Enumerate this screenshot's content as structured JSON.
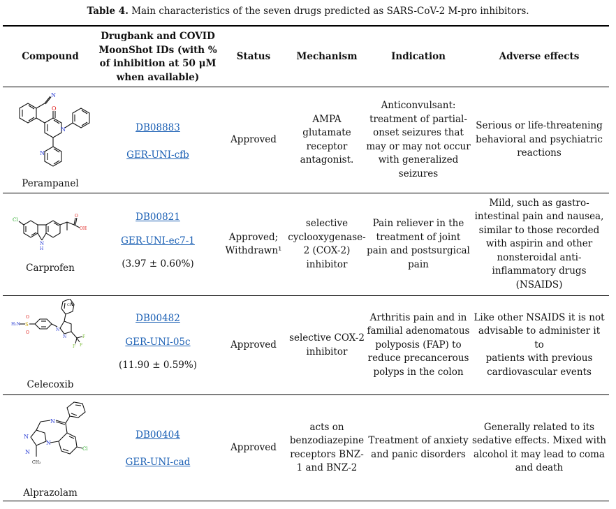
{
  "caption": {
    "label": "Table 4.",
    "text": "Main characteristics of the seven drugs predicted as SARS-CoV-2 M-pro inhibitors."
  },
  "headers": {
    "compound": "Compound",
    "ids": [
      "Drugbank and COVID",
      "MoonShot IDs (with %",
      "of inhibition at 50 μM",
      "when available)"
    ],
    "status": "Status",
    "mechanism": "Mechanism",
    "indication": "Indication",
    "adverse": "Adverse effects"
  },
  "rows": [
    {
      "compound": "Perampanel",
      "drugbank": "DB08883",
      "moonshot": "GER-UNI-cfb",
      "inhibition": "",
      "status": [
        "Approved"
      ],
      "mechanism": [
        "AMPA",
        "glutamate",
        "receptor",
        "antagonist."
      ],
      "indication": [
        "Anticonvulsant:",
        "treatment of partial-",
        "onset seizures that",
        "may or may not occur",
        "with generalized",
        "seizures"
      ],
      "adverse": [
        "Serious or life-threatening",
        "behavioral and psychiatric",
        "reactions"
      ]
    },
    {
      "compound": "Carprofen",
      "drugbank": "DB00821",
      "moonshot": "GER-UNI-ec7-1",
      "inhibition": "(3.97 ± 0.60%)",
      "status": [
        "Approved;",
        "Withdrawn¹"
      ],
      "mechanism": [
        "selective",
        "cyclooxygenase-",
        "2 (COX-2)",
        "inhibitor"
      ],
      "indication": [
        "Pain reliever in the",
        "treatment of joint",
        "pain and postsurgical",
        "pain"
      ],
      "adverse": [
        "Mild, such as gastro-",
        "intestinal pain and nausea,",
        "similar to those recorded",
        "with aspirin and other",
        "nonsteroidal anti-",
        "inflammatory drugs",
        "(NSAIDS)"
      ]
    },
    {
      "compound": "Celecoxib",
      "drugbank": "DB00482",
      "moonshot": "GER-UNI-05c",
      "inhibition": "(11.90 ± 0.59%)",
      "status": [
        "Approved"
      ],
      "mechanism": [
        "selective COX-2",
        "inhibitor"
      ],
      "indication": [
        "Arthritis pain and in",
        "familial adenomatous",
        "polyposis (FAP) to",
        "reduce precancerous",
        "polyps in the colon"
      ],
      "adverse": [
        "Like other NSAIDS it is not",
        "advisable to administer it to",
        "patients with previous",
        "cardiovascular events"
      ]
    },
    {
      "compound": "Alprazolam",
      "drugbank": "DB00404",
      "moonshot": "GER-UNI-cad",
      "inhibition": "",
      "status": [
        "Approved"
      ],
      "mechanism": [
        "acts on",
        "benzodiazepine",
        "receptors BNZ-",
        "1 and BNZ-2"
      ],
      "indication": [
        "Treatment of anxiety",
        "and panic disorders"
      ],
      "adverse": [
        "Generally related to its",
        "sedative effects. Mixed with",
        "alcohol it may lead to coma",
        "and death"
      ]
    }
  ],
  "structures": {
    "perampanel": {
      "labels": [
        "N",
        "O",
        "N",
        "N"
      ]
    },
    "carprofen": {
      "labels": [
        "Cl",
        "N",
        "H",
        "O",
        "OH"
      ]
    },
    "celecoxib": {
      "labels": [
        "H₂N",
        "S",
        "O",
        "O",
        "N",
        "N",
        "F",
        "F",
        "F",
        "CH₃"
      ]
    },
    "alprazolam": {
      "labels": [
        "N",
        "N",
        "N",
        "N",
        "Cl",
        "CH₃"
      ]
    }
  },
  "colors": {
    "link": "#1a5fb4",
    "nitrogen": "#2b3fd6",
    "oxygen": "#e0201c",
    "chlorine": "#1fa51f",
    "sulfur": "#c8a400",
    "fluorine": "#7fbf3f"
  }
}
